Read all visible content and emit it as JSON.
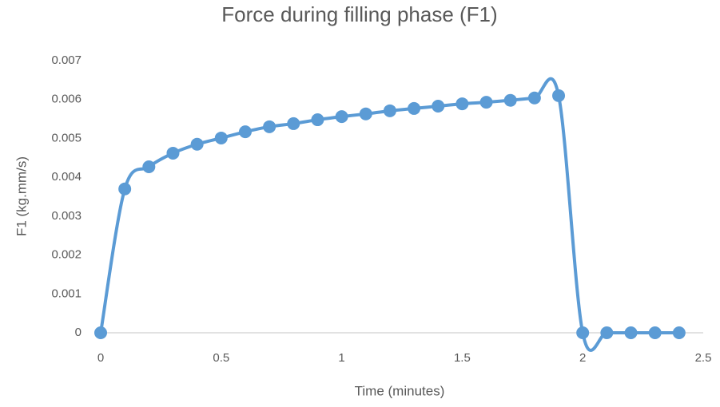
{
  "chart_data": {
    "type": "line",
    "title": "Force during filling phase (F1)",
    "x_label": "Time (minutes)",
    "y_label": "F1 (kg.mm/s)",
    "x": [
      0,
      0.1,
      0.2,
      0.3,
      0.4,
      0.5,
      0.6,
      0.7,
      0.8,
      0.9,
      1.0,
      1.1,
      1.2,
      1.3,
      1.4,
      1.5,
      1.6,
      1.7,
      1.8,
      1.9,
      2.0,
      2.1,
      2.2,
      2.3,
      2.4
    ],
    "series": [
      {
        "name": "F1",
        "color": "#5b9bd5",
        "values": [
          0,
          0.0037,
          0.00427,
          0.00462,
          0.00485,
          0.00501,
          0.00517,
          0.0053,
          0.00538,
          0.00548,
          0.00556,
          0.00563,
          0.00571,
          0.00577,
          0.00583,
          0.00589,
          0.00593,
          0.00598,
          0.00604,
          0.0061,
          0,
          0,
          0,
          0,
          0
        ]
      }
    ],
    "xlim": [
      0,
      2.5
    ],
    "xticks": [
      0,
      0.5,
      1,
      1.5,
      2,
      2.5
    ],
    "ylim": [
      0,
      0.007
    ],
    "yticks": [
      0,
      0.001,
      0.002,
      0.003,
      0.004,
      0.005,
      0.006,
      0.007
    ],
    "grid": false,
    "smooth": true,
    "markers": true
  }
}
